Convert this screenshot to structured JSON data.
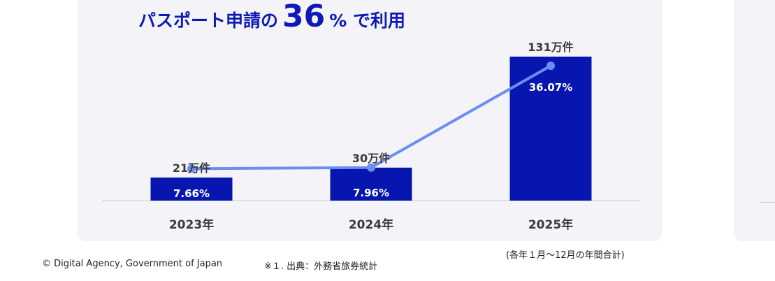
{
  "headline": {
    "prefix": "パスポート申請の",
    "number": "36",
    "suffix": "% で利用"
  },
  "chart_data": {
    "type": "bar",
    "categories": [
      "2023年",
      "2024年",
      "2025年"
    ],
    "bar_values": [
      21,
      30,
      131
    ],
    "bar_labels": [
      "21万件",
      "30万件",
      "131万件"
    ],
    "bar_unit": "万件",
    "line_values": [
      7.66,
      7.96,
      36.07
    ],
    "line_labels": [
      "7.66%",
      "7.96%",
      "36.07%"
    ],
    "bar_color": "#0816b0",
    "line_color": "#6b8ff0",
    "title": "",
    "xlabel": "",
    "ylabel": "",
    "grid": false
  },
  "footer": {
    "copyright": "© Digital Agency, Government of Japan",
    "source": "※１. 出典：外務省旅券統計",
    "note": "(各年１月〜12月の年間合計)"
  }
}
